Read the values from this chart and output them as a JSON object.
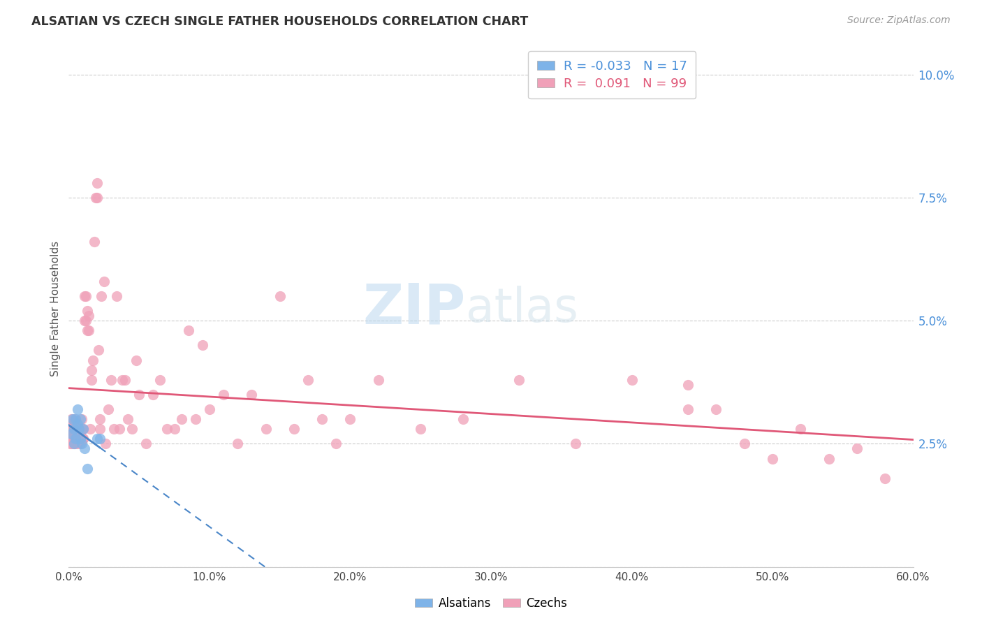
{
  "title": "ALSATIAN VS CZECH SINGLE FATHER HOUSEHOLDS CORRELATION CHART",
  "source": "Source: ZipAtlas.com",
  "ylabel": "Single Father Households",
  "xlim": [
    0.0,
    0.6
  ],
  "ylim": [
    0.0,
    0.105
  ],
  "xticks": [
    0.0,
    0.1,
    0.2,
    0.3,
    0.4,
    0.5,
    0.6
  ],
  "xticklabels": [
    "0.0%",
    "",
    "",
    "",
    "",
    "",
    "60.0%"
  ],
  "yticks": [
    0.0,
    0.025,
    0.05,
    0.075,
    0.1
  ],
  "yticklabels": [
    "",
    "2.5%",
    "5.0%",
    "7.5%",
    "10.0%"
  ],
  "alsatian_color": "#7eb3e8",
  "czech_color": "#f0a0b8",
  "alsatian_line_color": "#4a86c8",
  "czech_line_color": "#e05878",
  "watermark_zip": "ZIP",
  "watermark_atlas": "atlas",
  "legend_R_alsatian": "-0.033",
  "legend_N_alsatian": "17",
  "legend_R_czech": " 0.091",
  "legend_N_czech": "99",
  "alsatian_x": [
    0.002,
    0.003,
    0.004,
    0.004,
    0.005,
    0.005,
    0.006,
    0.006,
    0.007,
    0.008,
    0.008,
    0.009,
    0.01,
    0.011,
    0.013,
    0.02,
    0.022
  ],
  "alsatian_y": [
    0.027,
    0.03,
    0.025,
    0.028,
    0.03,
    0.026,
    0.029,
    0.032,
    0.028,
    0.026,
    0.03,
    0.025,
    0.028,
    0.024,
    0.02,
    0.026,
    0.026
  ],
  "czech_x": [
    0.001,
    0.001,
    0.001,
    0.002,
    0.002,
    0.002,
    0.002,
    0.003,
    0.003,
    0.003,
    0.003,
    0.004,
    0.004,
    0.004,
    0.004,
    0.005,
    0.005,
    0.005,
    0.005,
    0.006,
    0.006,
    0.007,
    0.007,
    0.007,
    0.008,
    0.008,
    0.009,
    0.009,
    0.01,
    0.01,
    0.01,
    0.011,
    0.011,
    0.012,
    0.012,
    0.013,
    0.013,
    0.014,
    0.014,
    0.015,
    0.016,
    0.016,
    0.017,
    0.018,
    0.019,
    0.02,
    0.02,
    0.021,
    0.022,
    0.022,
    0.023,
    0.025,
    0.026,
    0.028,
    0.03,
    0.032,
    0.034,
    0.036,
    0.038,
    0.04,
    0.042,
    0.045,
    0.048,
    0.05,
    0.055,
    0.06,
    0.065,
    0.07,
    0.075,
    0.08,
    0.085,
    0.09,
    0.095,
    0.1,
    0.11,
    0.12,
    0.13,
    0.14,
    0.15,
    0.16,
    0.17,
    0.18,
    0.19,
    0.2,
    0.22,
    0.25,
    0.28,
    0.32,
    0.36,
    0.4,
    0.44,
    0.48,
    0.52,
    0.54,
    0.56,
    0.58,
    0.44,
    0.46,
    0.5
  ],
  "czech_y": [
    0.027,
    0.029,
    0.025,
    0.026,
    0.028,
    0.03,
    0.025,
    0.027,
    0.029,
    0.025,
    0.027,
    0.026,
    0.028,
    0.03,
    0.025,
    0.027,
    0.029,
    0.025,
    0.028,
    0.025,
    0.028,
    0.026,
    0.028,
    0.026,
    0.025,
    0.027,
    0.028,
    0.03,
    0.026,
    0.028,
    0.026,
    0.05,
    0.055,
    0.05,
    0.055,
    0.048,
    0.052,
    0.048,
    0.051,
    0.028,
    0.038,
    0.04,
    0.042,
    0.066,
    0.075,
    0.075,
    0.078,
    0.044,
    0.028,
    0.03,
    0.055,
    0.058,
    0.025,
    0.032,
    0.038,
    0.028,
    0.055,
    0.028,
    0.038,
    0.038,
    0.03,
    0.028,
    0.042,
    0.035,
    0.025,
    0.035,
    0.038,
    0.028,
    0.028,
    0.03,
    0.048,
    0.03,
    0.045,
    0.032,
    0.035,
    0.025,
    0.035,
    0.028,
    0.055,
    0.028,
    0.038,
    0.03,
    0.025,
    0.03,
    0.038,
    0.028,
    0.03,
    0.038,
    0.025,
    0.038,
    0.032,
    0.025,
    0.028,
    0.022,
    0.024,
    0.018,
    0.037,
    0.032,
    0.022
  ]
}
